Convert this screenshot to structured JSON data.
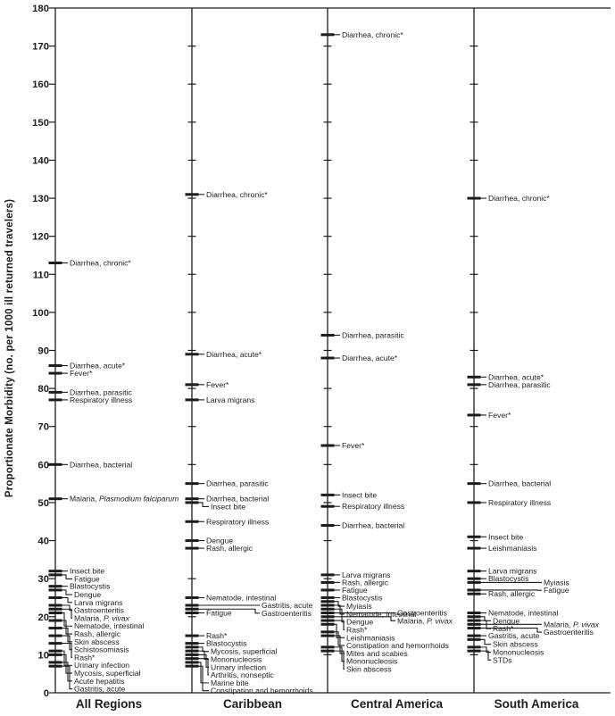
{
  "chart_data": {
    "type": "scatter",
    "title": "",
    "ylabel": "Proportionate Morbidity (no. per 1000 ill returned travelers)",
    "xlabel": "",
    "ylim": [
      0,
      180
    ],
    "y_tick_step": 10,
    "grid": false,
    "marker": "black horizontal tick on vertical axis with leader line to label",
    "italic_species": [
      "Plasmodium falciparum",
      "P. vivax"
    ],
    "panels": [
      {
        "region": "All Regions",
        "items": [
          {
            "label": "Diarrhea, chronic*",
            "value": 113
          },
          {
            "label": "Diarrhea, acute*",
            "value": 86
          },
          {
            "label": "Fever*",
            "value": 84
          },
          {
            "label": "Diarrhea, parasitic",
            "value": 79
          },
          {
            "label": "Respiratory illness",
            "value": 77
          },
          {
            "label": "Diarrhea, bacterial",
            "value": 60
          },
          {
            "label": "Malaria, Plasmodium falciparum",
            "value": 51
          },
          {
            "label": "Insect bite",
            "value": 32
          },
          {
            "label": "Fatigue",
            "value": 31
          },
          {
            "label": "Blastocystis",
            "value": 28
          },
          {
            "label": "Dengue",
            "value": 27
          },
          {
            "label": "Larva migrans",
            "value": 25
          },
          {
            "label": "Gastroenteritis",
            "value": 23
          },
          {
            "label": "Malaria, P. vivax",
            "value": 22
          },
          {
            "label": "Nematode, intestinal",
            "value": 21
          },
          {
            "label": "Rash, allergic",
            "value": 19
          },
          {
            "label": "Skin abscess",
            "value": 17
          },
          {
            "label": "Schistosomiasis",
            "value": 15
          },
          {
            "label": "Rash*",
            "value": 13
          },
          {
            "label": "Urinary infection",
            "value": 11
          },
          {
            "label": "Mycosis, superficial",
            "value": 10
          },
          {
            "label": "Acute hepatitis",
            "value": 8
          },
          {
            "label": "Gastritis, acute",
            "value": 7
          }
        ]
      },
      {
        "region": "Caribbean",
        "items": [
          {
            "label": "Diarrhea, chronic*",
            "value": 131
          },
          {
            "label": "Diarrhea, acute*",
            "value": 89
          },
          {
            "label": "Fever*",
            "value": 81
          },
          {
            "label": "Larva migrans",
            "value": 77
          },
          {
            "label": "Diarrhea, parasitic",
            "value": 55
          },
          {
            "label": "Diarrhea, bacterial",
            "value": 51
          },
          {
            "label": "Insect bite",
            "value": 50
          },
          {
            "label": "Respiratory illness",
            "value": 45
          },
          {
            "label": "Dengue",
            "value": 40
          },
          {
            "label": "Rash, allergic",
            "value": 38
          },
          {
            "label": "Nematode, intestinal",
            "value": 25
          },
          {
            "label": "Gastritis, acute",
            "value": 23,
            "col": 2
          },
          {
            "label": "Gastroenteritis",
            "value": 22,
            "col": 2
          },
          {
            "label": "Fatigue",
            "value": 21
          },
          {
            "label": "Rash*",
            "value": 15
          },
          {
            "label": "Blastocystis",
            "value": 13
          },
          {
            "label": "Mycosis, superficial",
            "value": 12
          },
          {
            "label": "Mononucleosis",
            "value": 11
          },
          {
            "label": "Urinary infection",
            "value": 10
          },
          {
            "label": "Arthritis, nonseptic",
            "value": 9
          },
          {
            "label": "Marine bite",
            "value": 8
          },
          {
            "label": "Constipation and hemorrhoids",
            "value": 7
          }
        ]
      },
      {
        "region": "Central America",
        "items": [
          {
            "label": "Diarrhea, chronic*",
            "value": 173
          },
          {
            "label": "Diarrhea, parasitic",
            "value": 94
          },
          {
            "label": "Diarrhea, acute*",
            "value": 88
          },
          {
            "label": "Fever*",
            "value": 65
          },
          {
            "label": "Insect bite",
            "value": 52
          },
          {
            "label": "Respiratory illness",
            "value": 49
          },
          {
            "label": "Diarrhea, bacterial",
            "value": 44
          },
          {
            "label": "Larva migrans",
            "value": 31
          },
          {
            "label": "Rash, allergic",
            "value": 29
          },
          {
            "label": "Fatigue",
            "value": 27
          },
          {
            "label": "Blastocystis",
            "value": 25
          },
          {
            "label": "Myiasis",
            "value": 24
          },
          {
            "label": "Nematode, intestinal",
            "value": 23
          },
          {
            "label": "Dengue",
            "value": 22
          },
          {
            "label": "Gastroenteritis",
            "value": 21,
            "col": 2
          },
          {
            "label": "Malaria, P. vivax",
            "value": 20,
            "col": 2
          },
          {
            "label": "Rash*",
            "value": 19
          },
          {
            "label": "Leishmaniasis",
            "value": 18
          },
          {
            "label": "Constipation and hemorrhoids",
            "value": 16
          },
          {
            "label": "Mites and scabies",
            "value": 15
          },
          {
            "label": "Mononucleosis",
            "value": 12
          },
          {
            "label": "Skin abscess",
            "value": 11
          }
        ]
      },
      {
        "region": "South America",
        "items": [
          {
            "label": "Diarrhea, chronic*",
            "value": 130
          },
          {
            "label": "Diarrhea, acute*",
            "value": 83
          },
          {
            "label": "Diarrhea, parasitic",
            "value": 81
          },
          {
            "label": "Fever*",
            "value": 73
          },
          {
            "label": "Diarrhea, bacterial",
            "value": 55
          },
          {
            "label": "Respiratory illness",
            "value": 50
          },
          {
            "label": "Insect bite",
            "value": 41
          },
          {
            "label": "Leishmaniasis",
            "value": 38
          },
          {
            "label": "Larva migrans",
            "value": 32
          },
          {
            "label": "Blastocystis",
            "value": 30
          },
          {
            "label": "Myiasis",
            "value": 29,
            "col": 2
          },
          {
            "label": "Fatigue",
            "value": 27,
            "col": 2
          },
          {
            "label": "Rash, allergic",
            "value": 26
          },
          {
            "label": "Nematode, intestinal",
            "value": 21
          },
          {
            "label": "Dengue",
            "value": 20
          },
          {
            "label": "Rash*",
            "value": 19
          },
          {
            "label": "Malaria, P. vivax",
            "value": 18,
            "col": 2
          },
          {
            "label": "Gastroenteritis",
            "value": 17,
            "col": 2
          },
          {
            "label": "Gastritis, acute",
            "value": 15
          },
          {
            "label": "Skin abscess",
            "value": 14
          },
          {
            "label": "Mononucleosis",
            "value": 12
          },
          {
            "label": "STDs",
            "value": 11
          }
        ]
      }
    ]
  }
}
